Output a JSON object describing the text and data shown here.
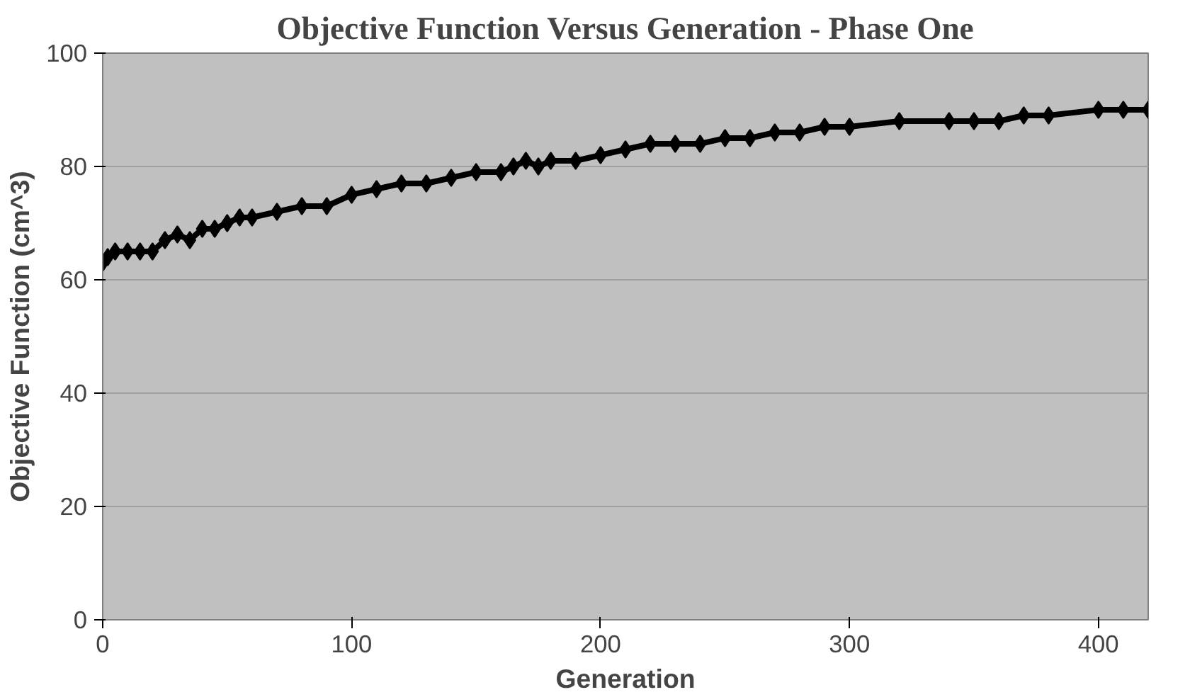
{
  "chart_data": {
    "type": "line",
    "title": "Objective Function Versus Generation - Phase One",
    "xlabel": "Generation",
    "ylabel": "Objective Function (cm^3)",
    "x": [
      0,
      2,
      5,
      10,
      15,
      20,
      25,
      30,
      35,
      40,
      45,
      50,
      55,
      60,
      70,
      80,
      90,
      100,
      110,
      120,
      130,
      140,
      150,
      160,
      165,
      170,
      175,
      180,
      190,
      200,
      210,
      220,
      230,
      240,
      250,
      260,
      270,
      280,
      290,
      300,
      320,
      340,
      350,
      360,
      370,
      380,
      400,
      410,
      420
    ],
    "series": [
      {
        "color": "#000000",
        "values": [
          63,
          64,
          65,
          65,
          65,
          65,
          67,
          68,
          67,
          69,
          69,
          70,
          71,
          71,
          72,
          73,
          73,
          75,
          76,
          77,
          77,
          78,
          79,
          79,
          80,
          81,
          80,
          81,
          81,
          82,
          83,
          84,
          84,
          84,
          85,
          85,
          86,
          86,
          87,
          87,
          88,
          88,
          88,
          88,
          89,
          89,
          90,
          90,
          90
        ]
      }
    ],
    "xlim": [
      0,
      420
    ],
    "ylim": [
      0,
      100
    ],
    "xticks": [
      0,
      100,
      200,
      300,
      400
    ],
    "yticks": [
      0,
      20,
      40,
      60,
      80,
      100
    ],
    "grid": "y",
    "marker": "diamond",
    "line_style": "solid"
  }
}
